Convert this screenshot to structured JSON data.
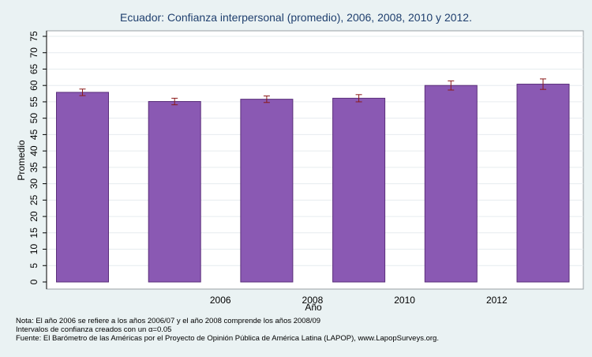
{
  "chart_data": {
    "type": "bar",
    "title": "Ecuador: Confianza interpersonal (promedio), 2006, 2008, 2010 y 2012.",
    "xlabel": "Año",
    "ylabel": "Promedio",
    "ylim": [
      0,
      75
    ],
    "yticks": [
      0,
      5,
      10,
      15,
      20,
      25,
      30,
      35,
      40,
      45,
      50,
      55,
      60,
      65,
      70,
      75
    ],
    "grid": true,
    "bar_color": "#8a59b3",
    "error_color": "#8b1a1a",
    "x_tick_labels": [
      "",
      "2006",
      "2008",
      "2010",
      "2012",
      ""
    ],
    "values": [
      57.9,
      55.1,
      55.8,
      56.1,
      60.0,
      60.4
    ],
    "error_low": [
      56.9,
      54.1,
      54.8,
      55.0,
      58.6,
      58.8
    ],
    "error_high": [
      58.9,
      56.1,
      56.8,
      57.2,
      61.4,
      62.0
    ]
  },
  "notes": {
    "line1": "Nota: El año 2006 se refiere a los años 2006/07 y el año 2008 comprende los años 2008/09",
    "line2": "Intervalos de confianza creados con un α=0.05",
    "line3": "Fuente: El Barómetro de las Américas por el Proyecto de Opinión Pública de América Latina (LAPOP), www.LapopSurveys.org."
  }
}
